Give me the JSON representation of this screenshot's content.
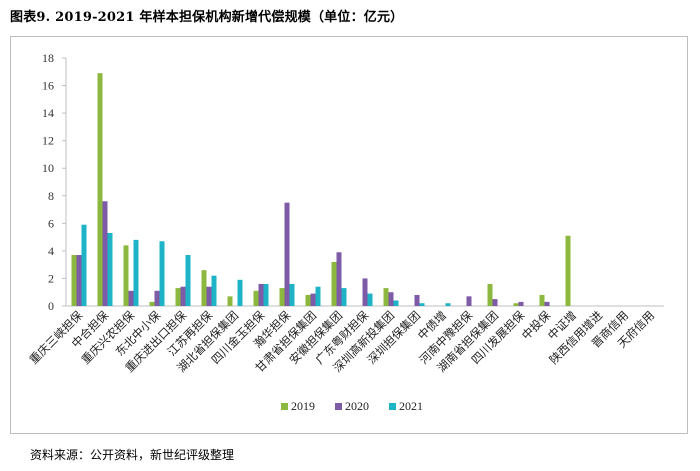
{
  "figure_title": "图表9.   2019-2021 年样本担保机构新增代偿规模（单位：亿元）",
  "source_note": "资料来源：公开资料，新世纪评级整理",
  "colors": {
    "2019": "#8cb83f",
    "2020": "#7e5ba6",
    "2021": "#1fb3c8",
    "axis": "#bfbfbf"
  },
  "chart_data": {
    "type": "bar",
    "title": "",
    "xlabel": "",
    "ylabel": "",
    "ylim": [
      0,
      18
    ],
    "yticks": [
      0,
      2,
      4,
      6,
      8,
      10,
      12,
      14,
      16,
      18
    ],
    "grid": false,
    "legend_position": "bottom",
    "categories": [
      "重庆三峡担保",
      "中合担保",
      "重庆兴农担保",
      "东北中小保",
      "重庆进出口担保",
      "江苏再担保",
      "湖北省担保集团",
      "四川金玉担保",
      "瀚华担保",
      "甘肃省担保集团",
      "安徽担保集团",
      "广东粤财担保",
      "深圳高新投集团",
      "深圳担保集团",
      "中债增",
      "河南中豫担保",
      "湖南省担保集团",
      "四川发展担保",
      "中投保",
      "中证增",
      "陕西信用增进",
      "晋商信用",
      "天府信用"
    ],
    "series": [
      {
        "name": "2019",
        "values": [
          3.7,
          16.9,
          4.4,
          0.3,
          1.3,
          2.6,
          0.7,
          1.1,
          1.3,
          0.8,
          3.2,
          0,
          1.3,
          0,
          0,
          0,
          1.6,
          0.2,
          0.8,
          5.1,
          0,
          0,
          0
        ]
      },
      {
        "name": "2020",
        "values": [
          3.7,
          7.6,
          1.1,
          1.1,
          1.4,
          1.4,
          0,
          1.6,
          7.5,
          0.9,
          3.9,
          2.0,
          1.0,
          0.8,
          0,
          0.7,
          0.5,
          0.3,
          0.3,
          0,
          0,
          0,
          0
        ]
      },
      {
        "name": "2021",
        "values": [
          5.9,
          5.3,
          4.8,
          4.7,
          3.7,
          2.2,
          1.9,
          1.6,
          1.6,
          1.4,
          1.3,
          0.9,
          0.4,
          0.2,
          0.2,
          0,
          0,
          0,
          0,
          0,
          0,
          0,
          0
        ]
      }
    ]
  }
}
